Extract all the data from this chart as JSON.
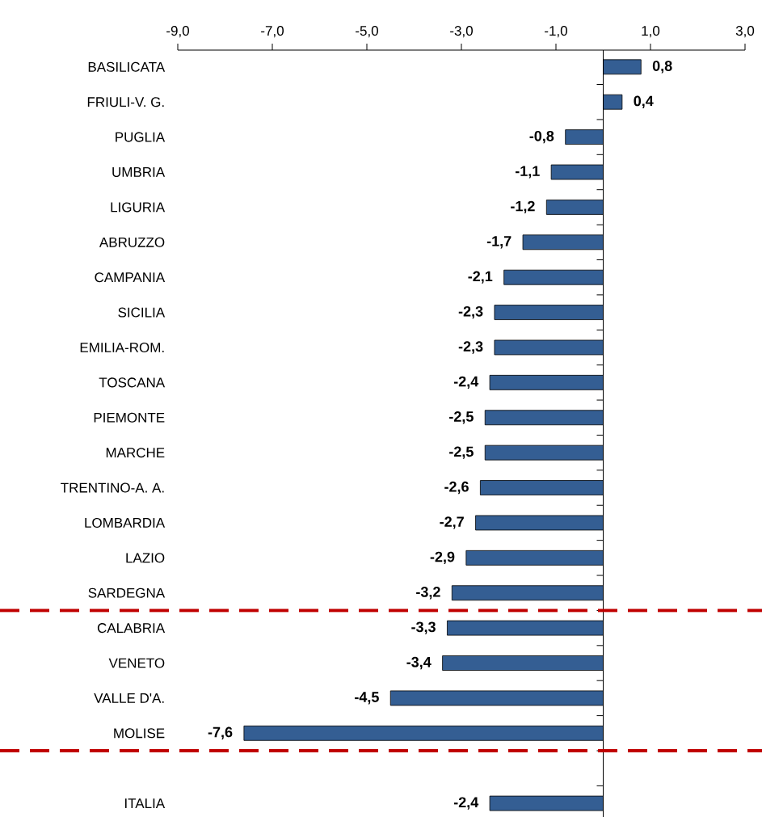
{
  "chart_data": {
    "type": "bar",
    "orientation": "horizontal",
    "categories": [
      "BASILICATA",
      "FRIULI-V. G.",
      "PUGLIA",
      "UMBRIA",
      "LIGURIA",
      "ABRUZZO",
      "CAMPANIA",
      "SICILIA",
      "EMILIA-ROM.",
      "TOSCANA",
      "PIEMONTE",
      "MARCHE",
      "TRENTINO-A. A.",
      "LOMBARDIA",
      "LAZIO",
      "SARDEGNA",
      "CALABRIA",
      "VENETO",
      "VALLE D'A.",
      "MOLISE",
      null,
      "ITALIA"
    ],
    "values": [
      0.8,
      0.4,
      -0.8,
      -1.1,
      -1.2,
      -1.7,
      -2.1,
      -2.3,
      -2.3,
      -2.4,
      -2.5,
      -2.5,
      -2.6,
      -2.7,
      -2.9,
      -3.2,
      -3.3,
      -3.4,
      -4.5,
      -7.6,
      null,
      -2.4
    ],
    "value_labels": [
      "0,8",
      "0,4",
      "-0,8",
      "-1,1",
      "-1,2",
      "-1,7",
      "-2,1",
      "-2,3",
      "-2,3",
      "-2,4",
      "-2,5",
      "-2,5",
      "-2,6",
      "-2,7",
      "-2,9",
      "-3,2",
      "-3,3",
      "-3,4",
      "-4,5",
      "-7,6",
      null,
      "-2,4"
    ],
    "color": "#345e93",
    "xlim": [
      -9,
      3
    ],
    "xticks": [
      {
        "value": -9,
        "label": "-9,0"
      },
      {
        "value": -7,
        "label": "-7,0"
      },
      {
        "value": -5,
        "label": "-5,0"
      },
      {
        "value": -3,
        "label": "-3,0"
      },
      {
        "value": -1,
        "label": "-1,0"
      },
      {
        "value": 1,
        "label": "1,0"
      },
      {
        "value": 3,
        "label": "3,0"
      }
    ]
  }
}
